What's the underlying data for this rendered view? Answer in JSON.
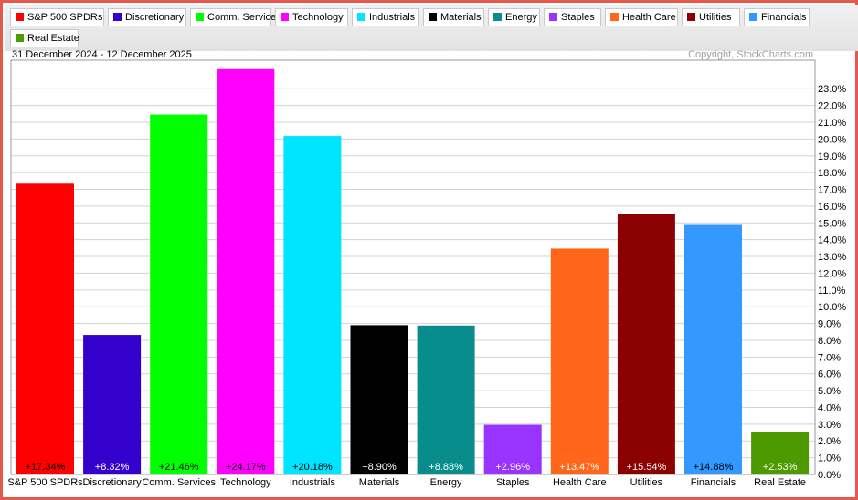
{
  "date_range": "31 December 2024 - 12 December 2025",
  "copyright": "Copyright, StockCharts.com",
  "legend": [
    {
      "label": "S&P 500 SPDRs",
      "color": "#ff0000"
    },
    {
      "label": "Discretionary",
      "color": "#3300cc"
    },
    {
      "label": "Comm. Services",
      "color": "#00ff00"
    },
    {
      "label": "Technology",
      "color": "#ff00ff"
    },
    {
      "label": "Industrials",
      "color": "#00e5ff"
    },
    {
      "label": "Materials",
      "color": "#000000"
    },
    {
      "label": "Energy",
      "color": "#088c8c"
    },
    {
      "label": "Staples",
      "color": "#9933ff"
    },
    {
      "label": "Health Care",
      "color": "#ff6619"
    },
    {
      "label": "Utilities",
      "color": "#8b0000"
    },
    {
      "label": "Financials",
      "color": "#3399ff"
    },
    {
      "label": "Real Estate",
      "color": "#4d9900"
    }
  ],
  "chart_data": {
    "type": "bar",
    "categories": [
      "S&P 500 SPDRs",
      "Discretionary",
      "Comm. Services",
      "Technology",
      "Industrials",
      "Materials",
      "Energy",
      "Staples",
      "Health Care",
      "Utilities",
      "Financials",
      "Real Estate"
    ],
    "values": [
      17.34,
      8.32,
      21.46,
      24.17,
      20.18,
      8.9,
      8.88,
      2.96,
      13.47,
      15.54,
      14.88,
      2.53
    ],
    "data_labels": [
      "+17.34%",
      "+8.32%",
      "+21.46%",
      "+24.17%",
      "+20.18%",
      "+8.90%",
      "+8.88%",
      "+2.96%",
      "+13.47%",
      "+15.54%",
      "+14.88%",
      "+2.53%"
    ],
    "colors": [
      "#ff0000",
      "#3300cc",
      "#00ff00",
      "#ff00ff",
      "#00e5ff",
      "#000000",
      "#088c8c",
      "#9933ff",
      "#ff6619",
      "#8b0000",
      "#3399ff",
      "#4d9900"
    ],
    "label_colors": [
      "#000000",
      "#ffffff",
      "#000000",
      "#000000",
      "#000000",
      "#ffffff",
      "#ffffff",
      "#ffffff",
      "#ffffff",
      "#ffffff",
      "#000000",
      "#ffffff"
    ],
    "y_ticks": [
      "0.0%",
      "1.0%",
      "2.0%",
      "3.0%",
      "4.0%",
      "5.0%",
      "6.0%",
      "7.0%",
      "8.0%",
      "9.0%",
      "10.0%",
      "11.0%",
      "12.0%",
      "13.0%",
      "14.0%",
      "15.0%",
      "16.0%",
      "17.0%",
      "18.0%",
      "19.0%",
      "20.0%",
      "21.0%",
      "22.0%",
      "23.0%"
    ],
    "ylim": [
      0,
      24.7
    ],
    "y_axis_position": "right",
    "grid": true
  }
}
